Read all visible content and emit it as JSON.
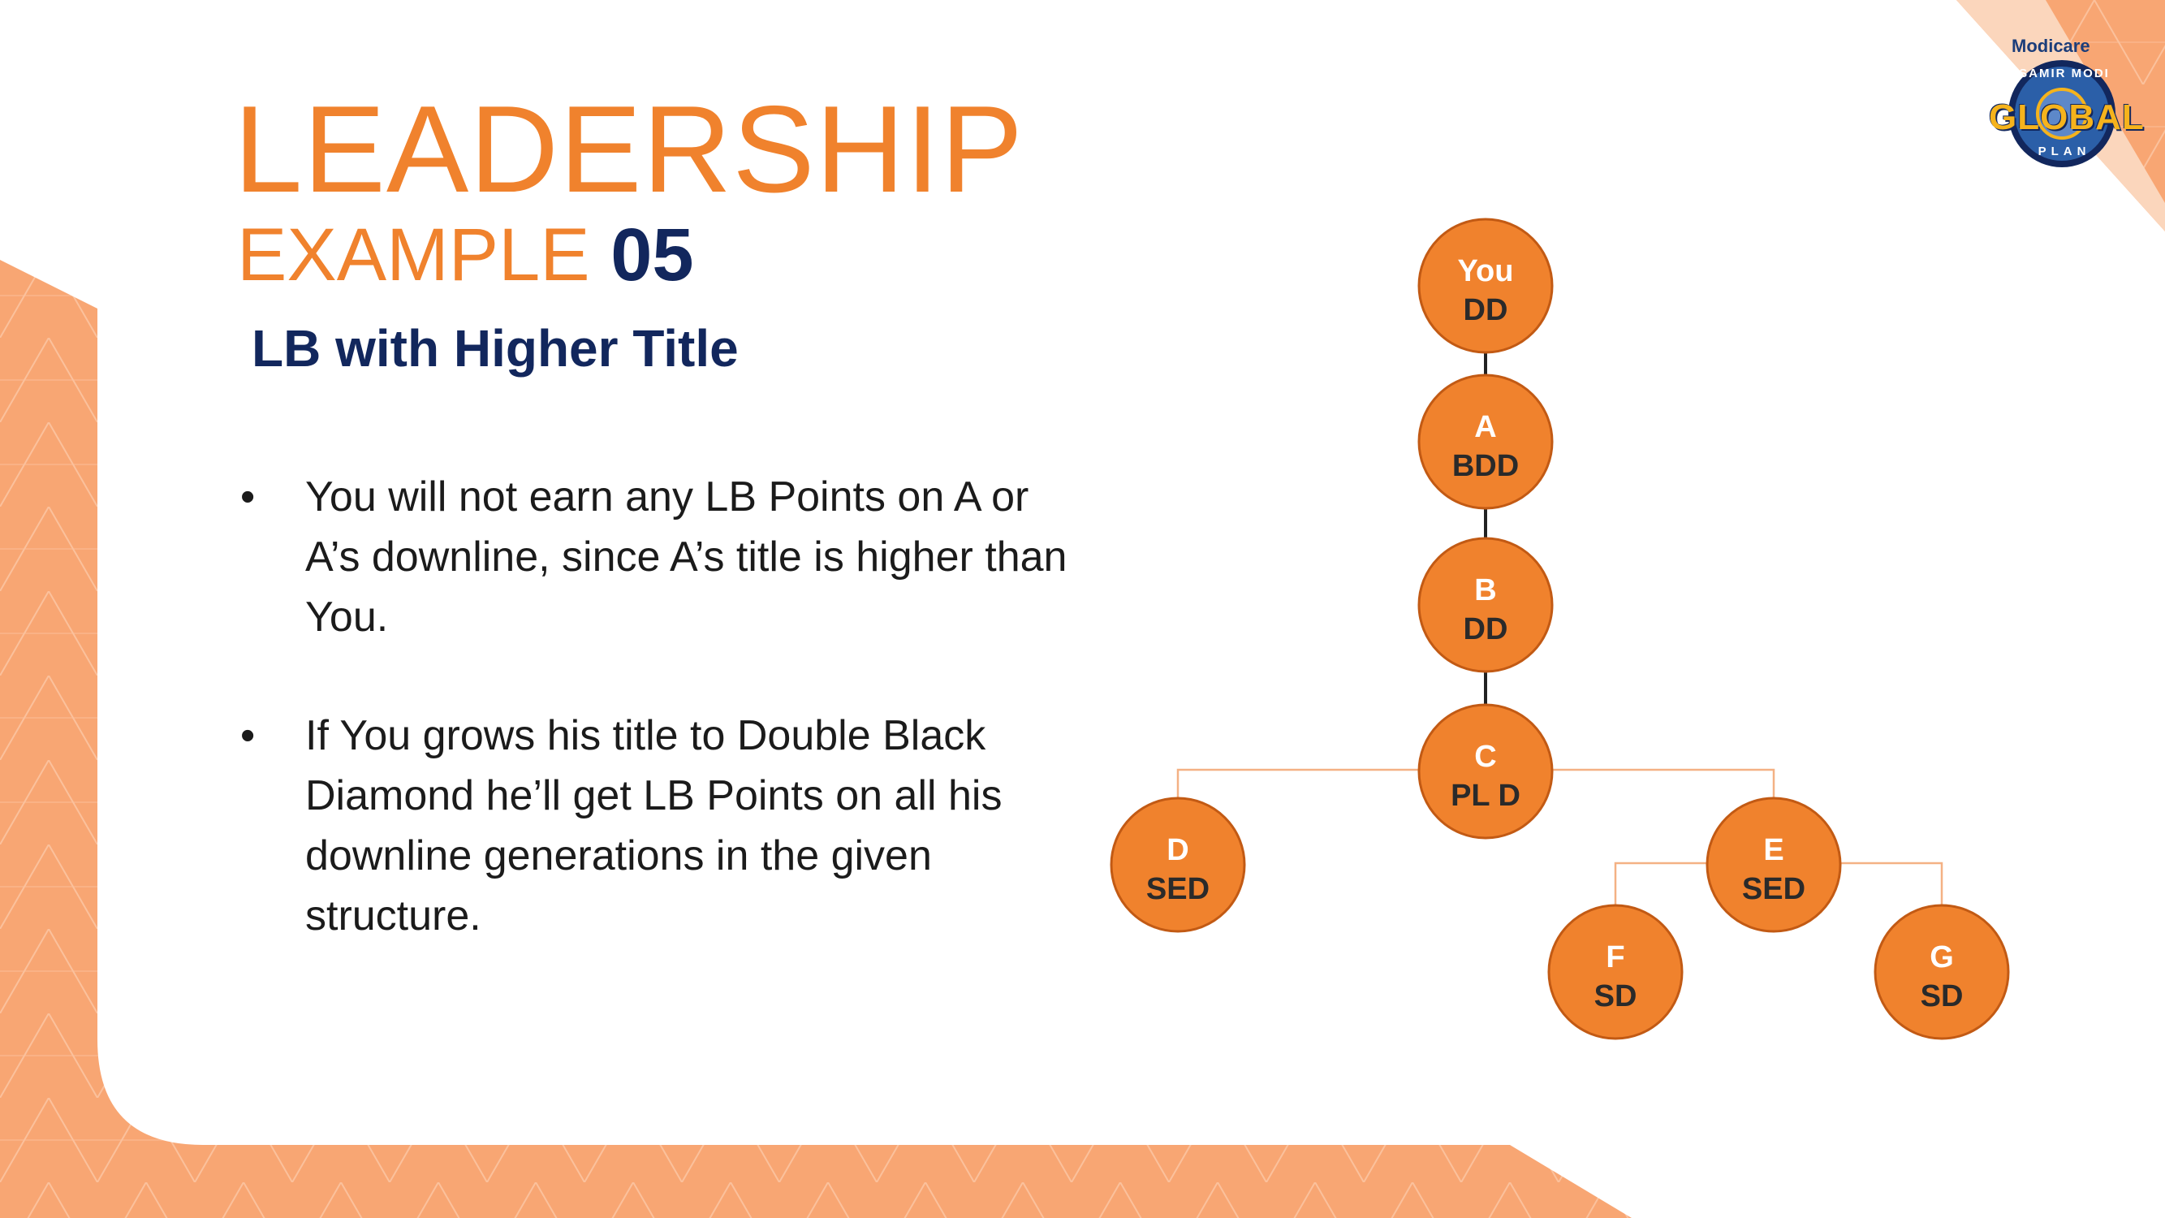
{
  "colors": {
    "accent_orange": "#f0822d",
    "navy": "#12275d",
    "band_orange": "#f8a673",
    "node_fill": "#f0822d",
    "node_stroke": "#c25a14"
  },
  "header": {
    "title": "LEADERSHIP",
    "example_word": "EXAMPLE",
    "example_number": "05",
    "subtitle": "LB with Higher Title"
  },
  "bullets": [
    {
      "text": "You will not earn any LB Points on A or A’s downline, since A’s title is higher than You."
    },
    {
      "text": "If You grows his title to Double Black Diamond he’ll get LB Points on all his downline generations in the given structure."
    }
  ],
  "bullet_glyph": "•",
  "logo": {
    "brand": "Modicare",
    "top_text": "SAMIR MODI",
    "word": "GLOBAL",
    "bottom_text": "PLAN"
  },
  "tree": {
    "nodes": [
      {
        "id": "you",
        "name": "You",
        "title": "DD"
      },
      {
        "id": "a",
        "name": "A",
        "title": "BDD"
      },
      {
        "id": "b",
        "name": "B",
        "title": "DD"
      },
      {
        "id": "c",
        "name": "C",
        "title": "PL D"
      },
      {
        "id": "d",
        "name": "D",
        "title": "SED"
      },
      {
        "id": "e",
        "name": "E",
        "title": "SED"
      },
      {
        "id": "f",
        "name": "F",
        "title": "SD"
      },
      {
        "id": "g",
        "name": "G",
        "title": "SD"
      }
    ],
    "edges": [
      [
        "you",
        "a"
      ],
      [
        "a",
        "b"
      ],
      [
        "b",
        "c"
      ],
      [
        "c",
        "d"
      ],
      [
        "c",
        "e"
      ],
      [
        "e",
        "f"
      ],
      [
        "e",
        "g"
      ]
    ]
  }
}
